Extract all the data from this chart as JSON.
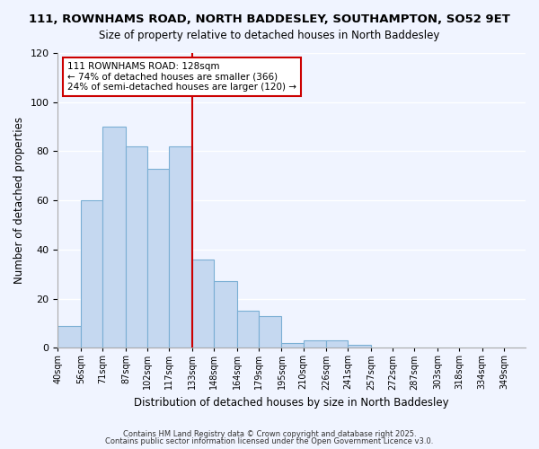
{
  "title": "111, ROWNHAMS ROAD, NORTH BADDESLEY, SOUTHAMPTON, SO52 9ET",
  "subtitle": "Size of property relative to detached houses in North Baddesley",
  "xlabel": "Distribution of detached houses by size in North Baddesley",
  "ylabel": "Number of detached properties",
  "bar_color": "#c5d8f0",
  "bar_edge_color": "#7bafd4",
  "background_color": "#f0f4ff",
  "grid_color": "#ffffff",
  "vline_x": 133,
  "vline_color": "#cc0000",
  "categories": [
    "40sqm",
    "56sqm",
    "71sqm",
    "87sqm",
    "102sqm",
    "117sqm",
    "133sqm",
    "148sqm",
    "164sqm",
    "179sqm",
    "195sqm",
    "210sqm",
    "226sqm",
    "241sqm",
    "257sqm",
    "272sqm",
    "287sqm",
    "303sqm",
    "318sqm",
    "334sqm",
    "349sqm"
  ],
  "bin_edges": [
    40,
    56,
    71,
    87,
    102,
    117,
    133,
    148,
    164,
    179,
    195,
    210,
    226,
    241,
    257,
    272,
    287,
    303,
    318,
    334,
    349,
    364
  ],
  "values": [
    9,
    60,
    90,
    82,
    73,
    82,
    36,
    27,
    15,
    13,
    2,
    3,
    3,
    1,
    0,
    0,
    0,
    0,
    0,
    0,
    0
  ],
  "ylim": [
    0,
    120
  ],
  "yticks": [
    0,
    20,
    40,
    60,
    80,
    100,
    120
  ],
  "annotation_title": "111 ROWNHAMS ROAD: 128sqm",
  "annotation_line1": "← 74% of detached houses are smaller (366)",
  "annotation_line2": "24% of semi-detached houses are larger (120) →",
  "annotation_box_color": "#ffffff",
  "annotation_box_edge": "#cc0000",
  "footer1": "Contains HM Land Registry data © Crown copyright and database right 2025.",
  "footer2": "Contains public sector information licensed under the Open Government Licence v3.0."
}
